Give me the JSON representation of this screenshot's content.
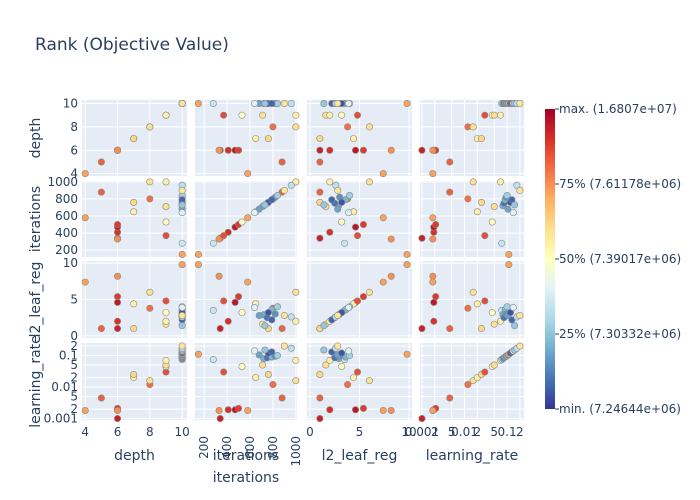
{
  "chart_data": {
    "type": "scatter",
    "subtype": "scatter-matrix",
    "title": "Rank (Objective Value)",
    "variables": [
      "depth",
      "iterations",
      "l2_leaf_reg",
      "learning_rate"
    ],
    "y_axis_labels": {
      "depth": [
        "6",
        "8",
        "10",
        "4"
      ],
      "iterations": [
        "200",
        "400",
        "600",
        "800",
        "1000"
      ],
      "l2_leaf_reg": [
        "0",
        "5",
        "10"
      ],
      "learning_rate": [
        "0.001",
        "2",
        "5",
        "0.01",
        "2",
        "5",
        "0.1",
        "2"
      ]
    },
    "x_axis_labels": {
      "depth": [
        "4",
        "6",
        "8",
        "10"
      ],
      "iterations": [
        "200",
        "400",
        "600",
        "800",
        "1000"
      ],
      "l2_leaf_reg": [
        "0",
        "5",
        "10"
      ],
      "learning_rate": [
        "0.001",
        "2",
        "5",
        "0.01",
        "2",
        "5",
        "0.1",
        "2"
      ]
    },
    "x_axis_title": "iterations",
    "learning_rate_log_scale": true,
    "grid": true,
    "colorscale": [
      "#313695",
      "#4575b4",
      "#74add1",
      "#abd9e9",
      "#e0f3f8",
      "#ffffbf",
      "#fee090",
      "#fdae61",
      "#f46d43",
      "#d73027",
      "#a50026"
    ],
    "colorbar": {
      "tick_labels": [
        "max. (1.6807e+07)",
        "75% (7.61178e+06)",
        "50% (7.39017e+06)",
        "25% (7.30332e+06)",
        "min. (7.24644e+06)"
      ],
      "tick_fractions": [
        1.0,
        0.75,
        0.5,
        0.25,
        0.0
      ]
    },
    "points": [
      {
        "depth": 6,
        "iterations": 340,
        "l2_leaf_reg": 1.0,
        "learning_rate": 0.001,
        "rank": 0.93
      },
      {
        "depth": 6,
        "iterations": 410,
        "l2_leaf_reg": 2.0,
        "learning_rate": 0.0019,
        "rank": 0.9
      },
      {
        "depth": 6,
        "iterations": 470,
        "l2_leaf_reg": 4.6,
        "learning_rate": 0.0019,
        "rank": 0.95
      },
      {
        "depth": 6,
        "iterations": 500,
        "l2_leaf_reg": 5.4,
        "learning_rate": 0.0021,
        "rank": 0.88
      },
      {
        "depth": 6,
        "iterations": 330,
        "l2_leaf_reg": 8.2,
        "learning_rate": 0.0018,
        "rank": 0.75
      },
      {
        "depth": 5,
        "iterations": 880,
        "l2_leaf_reg": 1.0,
        "learning_rate": 0.0045,
        "rank": 0.82
      },
      {
        "depth": 4,
        "iterations": 580,
        "l2_leaf_reg": 7.4,
        "learning_rate": 0.0018,
        "rank": 0.72
      },
      {
        "depth": 8,
        "iterations": 800,
        "l2_leaf_reg": 3.8,
        "learning_rate": 0.012,
        "rank": 0.8
      },
      {
        "depth": 8,
        "iterations": 1000,
        "l2_leaf_reg": 6.0,
        "learning_rate": 0.016,
        "rank": 0.6
      },
      {
        "depth": 7,
        "iterations": 650,
        "l2_leaf_reg": 4.4,
        "learning_rate": 0.02,
        "rank": 0.55
      },
      {
        "depth": 7,
        "iterations": 760,
        "l2_leaf_reg": 1.0,
        "learning_rate": 0.025,
        "rank": 0.62
      },
      {
        "depth": 9,
        "iterations": 370,
        "l2_leaf_reg": 4.8,
        "learning_rate": 0.03,
        "rank": 0.85
      },
      {
        "depth": 9,
        "iterations": 530,
        "l2_leaf_reg": 3.2,
        "learning_rate": 0.045,
        "rank": 0.5
      },
      {
        "depth": 9,
        "iterations": 710,
        "l2_leaf_reg": 1.6,
        "learning_rate": 0.05,
        "rank": 0.6
      },
      {
        "depth": 9,
        "iterations": 1000,
        "l2_leaf_reg": 2.0,
        "learning_rate": 0.07,
        "rank": 0.55
      },
      {
        "depth": 10,
        "iterations": 280,
        "l2_leaf_reg": 3.5,
        "learning_rate": 0.075,
        "rank": 0.35
      },
      {
        "depth": 10,
        "iterations": 720,
        "l2_leaf_reg": 2.9,
        "learning_rate": 0.08,
        "rank": 0.2
      },
      {
        "depth": 10,
        "iterations": 750,
        "l2_leaf_reg": 2.5,
        "learning_rate": 0.085,
        "rank": 0.1
      },
      {
        "depth": 10,
        "iterations": 790,
        "l2_leaf_reg": 3.6,
        "learning_rate": 0.09,
        "rank": 0.22
      },
      {
        "depth": 10,
        "iterations": 820,
        "l2_leaf_reg": 3.0,
        "learning_rate": 0.095,
        "rank": 0.15
      },
      {
        "depth": 10,
        "iterations": 840,
        "l2_leaf_reg": 4.0,
        "learning_rate": 0.1,
        "rank": 0.28
      },
      {
        "depth": 10,
        "iterations": 680,
        "l2_leaf_reg": 2.8,
        "learning_rate": 0.105,
        "rank": 0.18
      },
      {
        "depth": 10,
        "iterations": 150,
        "l2_leaf_reg": 9.8,
        "learning_rate": 0.11,
        "rank": 0.72
      },
      {
        "depth": 10,
        "iterations": 760,
        "l2_leaf_reg": 3.2,
        "learning_rate": 0.12,
        "rank": 0.05
      },
      {
        "depth": 10,
        "iterations": 790,
        "l2_leaf_reg": 2.2,
        "learning_rate": 0.13,
        "rank": 0.08
      },
      {
        "depth": 10,
        "iterations": 640,
        "l2_leaf_reg": 3.9,
        "learning_rate": 0.14,
        "rank": 0.4
      },
      {
        "depth": 10,
        "iterations": 730,
        "l2_leaf_reg": 1.4,
        "learning_rate": 0.15,
        "rank": 0.26
      },
      {
        "depth": 10,
        "iterations": 960,
        "l2_leaf_reg": 2.6,
        "learning_rate": 0.17,
        "rank": 0.33
      },
      {
        "depth": 10,
        "iterations": 900,
        "l2_leaf_reg": 2.8,
        "learning_rate": 0.2,
        "rank": 0.58
      }
    ]
  }
}
